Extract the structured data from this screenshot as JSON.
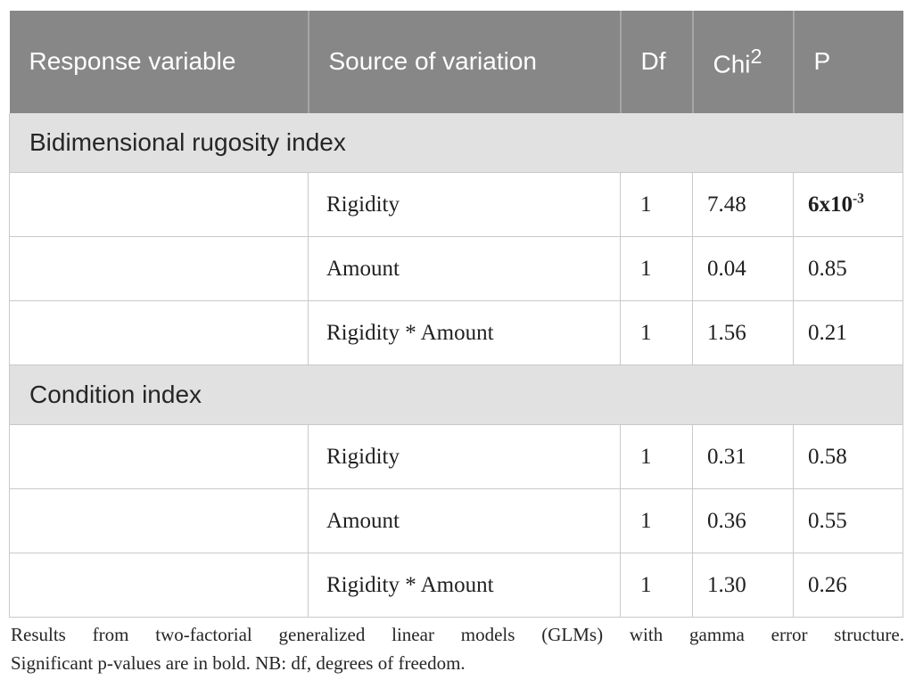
{
  "colors": {
    "header_bg": "#878787",
    "header_text": "#ffffff",
    "section_bg": "#e1e1e1",
    "border": "#c9c9c9",
    "body_text": "#1f1f1f"
  },
  "table": {
    "header": {
      "response": "Response variable",
      "source": "Source of variation",
      "df": "Df",
      "chi_base": "Chi",
      "chi_sup": "2",
      "p": "P"
    },
    "sections": [
      {
        "title": "Bidimensional rugosity index",
        "rows": [
          {
            "source": "Rigidity",
            "df": "1",
            "chi": "7.48",
            "p": "6x10",
            "p_sup": "-3",
            "significant": true,
            "p_class": "cell num p-bold"
          },
          {
            "source": "Amount",
            "df": "1",
            "chi": "0.04",
            "p": "0.85"
          },
          {
            "source": "Rigidity * Amount",
            "df": "1",
            "chi": "1.56",
            "p": "0.21"
          }
        ]
      },
      {
        "title": "Condition index",
        "rows": [
          {
            "source": "Rigidity",
            "df": "1",
            "chi": "0.31",
            "p": "0.58"
          },
          {
            "source": "Amount",
            "df": "1",
            "chi": "0.36",
            "p": "0.55"
          },
          {
            "source": "Rigidity * Amount",
            "df": "1",
            "chi": "1.30",
            "p": "0.26"
          }
        ]
      }
    ]
  },
  "footnote": {
    "line1": "Results from two-factorial generalized linear models (GLMs) with gamma error structure.",
    "line2": "Significant p-values are in bold. NB: df, degrees of freedom."
  }
}
